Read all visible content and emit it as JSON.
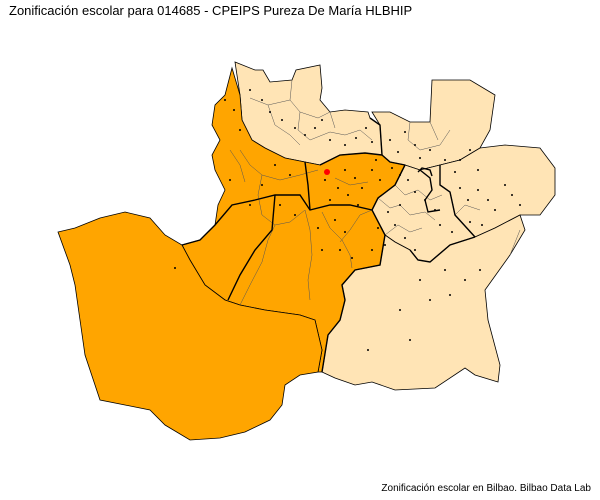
{
  "title": "Zonificación escolar para 014685 - CPEIPS Pureza De María HLBHIP",
  "caption": "Zonificación escolar en Bilbao. Bilbao Data Lab",
  "colors": {
    "zone_selected": "#FFA500",
    "zone_other": "#FFE4B5",
    "border": "#000000",
    "school_point": "#000000",
    "selected_school": "#FF0000"
  },
  "legend": []
}
